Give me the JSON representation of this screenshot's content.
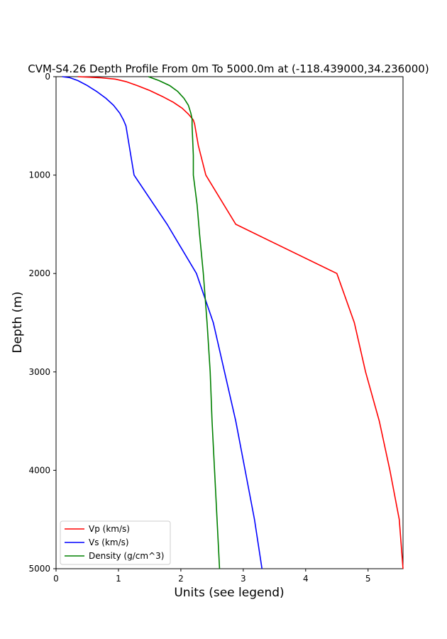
{
  "chart_data": {
    "type": "line",
    "title": "CVM-S4.26 Depth Profile From 0m To 5000.0m at (-118.439000,34.236000)",
    "xlabel": "Units (see legend)",
    "ylabel": "Depth (m)",
    "xlim": [
      0,
      5.56
    ],
    "ylim": [
      5000,
      0
    ],
    "y_inverted": true,
    "xticks": [
      "0",
      "1",
      "2",
      "3",
      "4",
      "5"
    ],
    "yticks": [
      "0",
      "1000",
      "2000",
      "3000",
      "4000",
      "5000"
    ],
    "grid": false,
    "legend_position": "lower-left",
    "series": [
      {
        "name": "Vp (km/s)",
        "color": "#ff0000",
        "points": [
          [
            0.35,
            0
          ],
          [
            0.7,
            10
          ],
          [
            0.95,
            25
          ],
          [
            1.12,
            50
          ],
          [
            1.3,
            90
          ],
          [
            1.5,
            140
          ],
          [
            1.7,
            200
          ],
          [
            1.88,
            260
          ],
          [
            2.02,
            320
          ],
          [
            2.12,
            380
          ],
          [
            2.2,
            440
          ],
          [
            2.22,
            480
          ],
          [
            2.28,
            700
          ],
          [
            2.4,
            1000
          ],
          [
            2.88,
            1500
          ],
          [
            4.5,
            2000
          ],
          [
            4.78,
            2500
          ],
          [
            4.96,
            3000
          ],
          [
            5.18,
            3500
          ],
          [
            5.35,
            4000
          ],
          [
            5.5,
            4500
          ],
          [
            5.56,
            5000
          ]
        ]
      },
      {
        "name": "Vs (km/s)",
        "color": "#0000ff",
        "points": [
          [
            0.1,
            0
          ],
          [
            0.22,
            10
          ],
          [
            0.35,
            40
          ],
          [
            0.5,
            90
          ],
          [
            0.65,
            150
          ],
          [
            0.8,
            220
          ],
          [
            0.92,
            290
          ],
          [
            1.02,
            370
          ],
          [
            1.08,
            440
          ],
          [
            1.12,
            500
          ],
          [
            1.25,
            1000
          ],
          [
            1.78,
            1500
          ],
          [
            2.25,
            2000
          ],
          [
            2.52,
            2500
          ],
          [
            2.7,
            3000
          ],
          [
            2.88,
            3500
          ],
          [
            3.03,
            4000
          ],
          [
            3.18,
            4500
          ],
          [
            3.3,
            5000
          ]
        ]
      },
      {
        "name": "Density (g/cm^3)",
        "color": "#008000",
        "points": [
          [
            1.48,
            0
          ],
          [
            1.65,
            40
          ],
          [
            1.82,
            90
          ],
          [
            1.95,
            150
          ],
          [
            2.05,
            220
          ],
          [
            2.12,
            290
          ],
          [
            2.16,
            370
          ],
          [
            2.18,
            430
          ],
          [
            2.18,
            500
          ],
          [
            2.2,
            800
          ],
          [
            2.2,
            1000
          ],
          [
            2.26,
            1300
          ],
          [
            2.3,
            1600
          ],
          [
            2.36,
            2000
          ],
          [
            2.42,
            2500
          ],
          [
            2.47,
            3000
          ],
          [
            2.5,
            3500
          ],
          [
            2.54,
            4000
          ],
          [
            2.58,
            4500
          ],
          [
            2.62,
            5000
          ]
        ]
      }
    ]
  }
}
